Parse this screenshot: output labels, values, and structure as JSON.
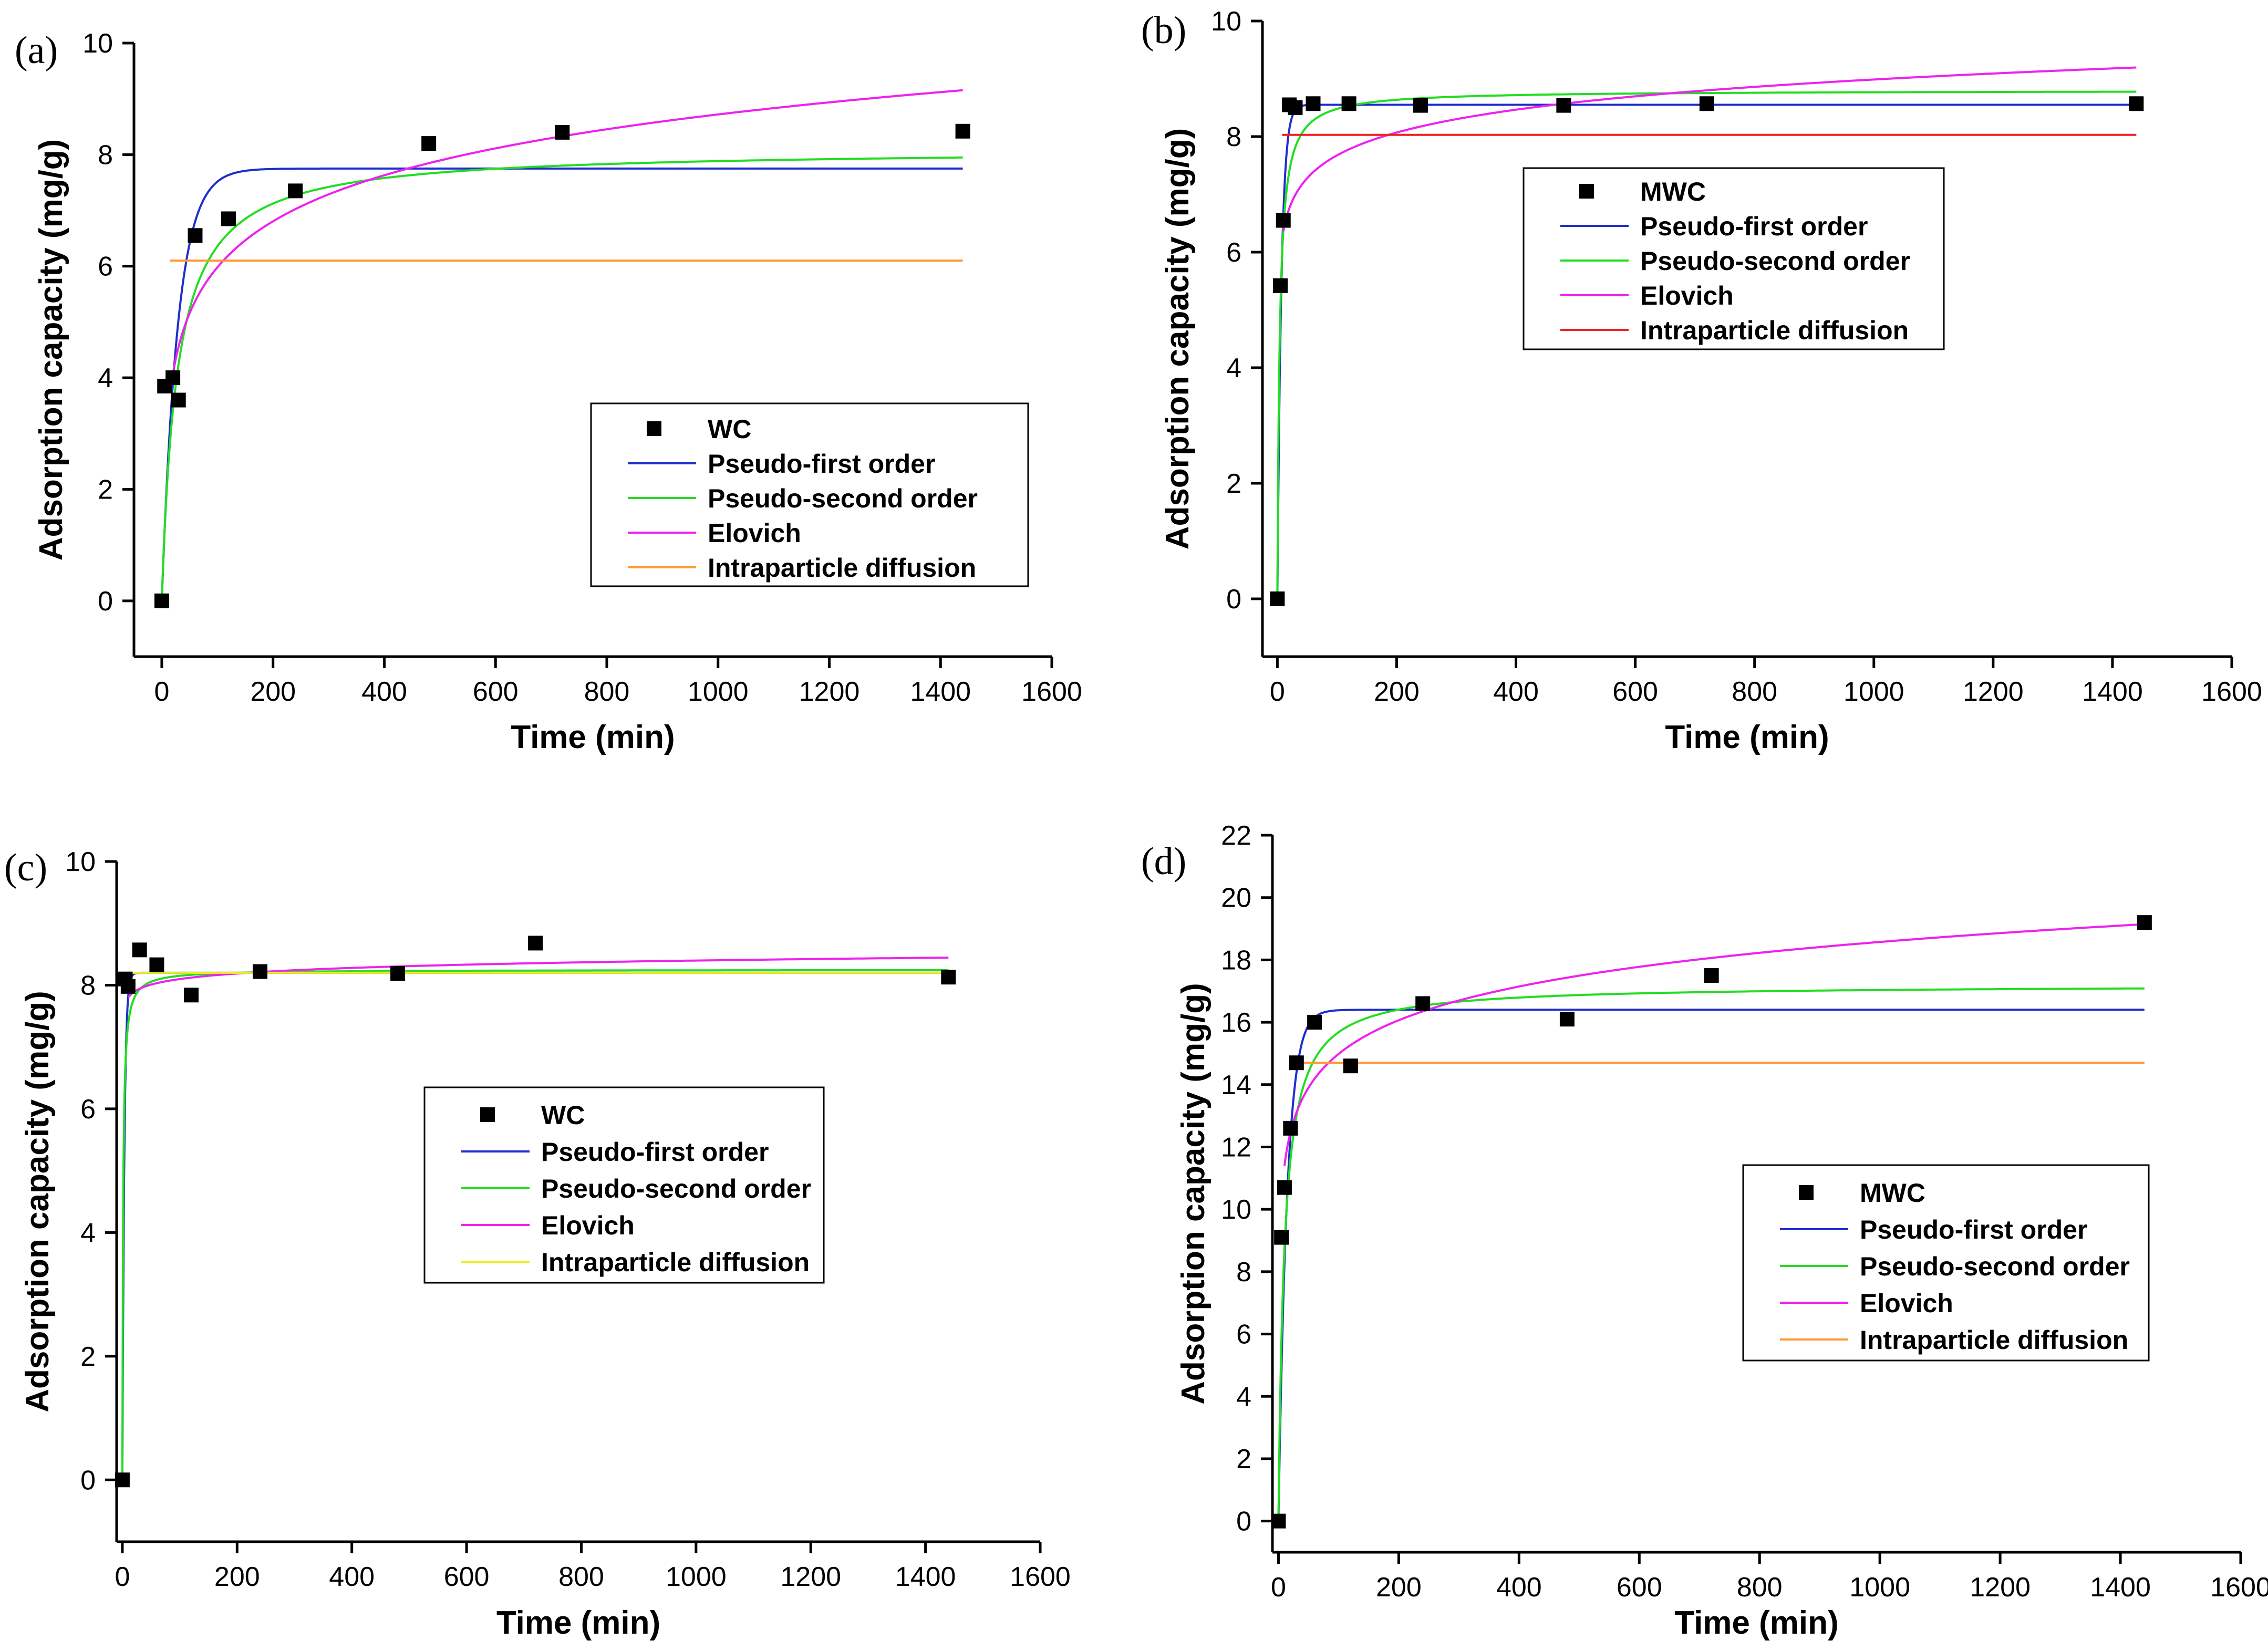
{
  "colors": {
    "pfo": "#1f2ecc",
    "pso": "#22dd22",
    "elovich": "#ee22ee",
    "ipd_orange": "#ff9933",
    "ipd_red": "#ee2222",
    "ipd_yellow": "#eeee22",
    "marker": "#000000"
  },
  "chart_data": [
    {
      "panel": "(a)",
      "type": "scatter",
      "xlabel": "Time (min)",
      "ylabel": "Adsorption capacity (mg/g)",
      "xlim": [
        -50,
        1600
      ],
      "ylim": [
        -1,
        10
      ],
      "xticks": [
        0,
        200,
        400,
        600,
        800,
        1000,
        1200,
        1400,
        1600
      ],
      "yticks": [
        0,
        2,
        4,
        6,
        8,
        10
      ],
      "legend_position": "center-right",
      "scatter": {
        "name": "WC",
        "x": [
          0,
          5,
          20,
          30,
          60,
          120,
          240,
          480,
          720,
          1440
        ],
        "y": [
          0,
          3.85,
          4.0,
          3.6,
          6.55,
          6.85,
          7.35,
          8.2,
          8.4,
          8.42
        ]
      },
      "series": [
        {
          "name": "Pseudo-first order",
          "color_key": "pfo",
          "model": "pfo",
          "params": {
            "qe": 7.75,
            "k": 0.035
          }
        },
        {
          "name": "Pseudo-second order",
          "color_key": "pso",
          "model": "pso",
          "params": {
            "qe": 8.1,
            "k": 0.0045
          }
        },
        {
          "name": "Elovich",
          "color_key": "elovich",
          "model": "elovich",
          "params": {
            "a": 0.5,
            "b": 1.19,
            "t0": 20
          }
        },
        {
          "name": "Intraparticle diffusion",
          "color_key": "ipd_orange",
          "model": "constant",
          "params": {
            "c": 6.1,
            "t0": 15
          }
        }
      ]
    },
    {
      "panel": "(b)",
      "type": "scatter",
      "xlabel": "Time (min)",
      "ylabel": "Adsorption capacity (mg/g)",
      "xlim": [
        -25,
        1600
      ],
      "ylim": [
        -1,
        10
      ],
      "xticks": [
        0,
        200,
        400,
        600,
        800,
        1000,
        1200,
        1400,
        1600
      ],
      "yticks": [
        0,
        2,
        4,
        6,
        8,
        10
      ],
      "legend_position": "upper-center",
      "scatter": {
        "name": "MWC",
        "x": [
          0,
          5,
          10,
          20,
          30,
          60,
          120,
          240,
          480,
          720,
          1440
        ],
        "y": [
          0,
          5.42,
          6.55,
          8.55,
          8.5,
          8.57,
          8.57,
          8.54,
          8.54,
          8.57,
          8.57
        ]
      },
      "series": [
        {
          "name": "Pseudo-first order",
          "color_key": "pfo",
          "model": "pfo",
          "params": {
            "qe": 8.55,
            "k": 0.15
          }
        },
        {
          "name": "Pseudo-second order",
          "color_key": "pso",
          "model": "pso",
          "params": {
            "qe": 8.8,
            "k": 0.03
          }
        },
        {
          "name": "Elovich",
          "color_key": "elovich",
          "model": "elovich",
          "params": {
            "a": 5.05,
            "b": 0.57,
            "t0": 10
          }
        },
        {
          "name": "Intraparticle diffusion",
          "color_key": "ipd_red",
          "model": "constant",
          "params": {
            "c": 8.03,
            "t0": 8
          }
        }
      ]
    },
    {
      "panel": "(c)",
      "type": "scatter",
      "xlabel": "Time (min)",
      "ylabel": "Adsorption capacity (mg/g)",
      "xlim": [
        -10,
        1600
      ],
      "ylim": [
        -1,
        10
      ],
      "xticks": [
        0,
        200,
        400,
        600,
        800,
        1000,
        1200,
        1400,
        1600
      ],
      "yticks": [
        0,
        2,
        4,
        6,
        8,
        10
      ],
      "legend_position": "center",
      "scatter": {
        "name": "WC",
        "x": [
          0,
          5,
          10,
          30,
          60,
          120,
          240,
          480,
          720,
          1440
        ],
        "y": [
          0,
          8.1,
          7.98,
          8.57,
          8.33,
          7.84,
          8.22,
          8.19,
          8.68,
          8.13
        ]
      },
      "series": [
        {
          "name": "Pseudo-first order",
          "color_key": "pfo",
          "model": "pfo",
          "params": {
            "qe": 8.2,
            "k": 0.3
          }
        },
        {
          "name": "Pseudo-second order",
          "color_key": "pso",
          "model": "pso",
          "params": {
            "qe": 8.25,
            "k": 0.1
          }
        },
        {
          "name": "Elovich",
          "color_key": "elovich",
          "model": "elovich",
          "params": {
            "a": 7.5,
            "b": 0.13,
            "t0": 10
          }
        },
        {
          "name": "Intraparticle diffusion",
          "color_key": "ipd_yellow",
          "model": "constant",
          "params": {
            "c": 8.2,
            "t0": 10
          }
        }
      ]
    },
    {
      "panel": "(d)",
      "type": "scatter",
      "xlabel": "Time (min)",
      "ylabel": "Adsorption capacity (mg/g)",
      "xlim": [
        -10,
        1600
      ],
      "ylim": [
        -1,
        22
      ],
      "xticks": [
        0,
        200,
        400,
        600,
        800,
        1000,
        1200,
        1400,
        1600
      ],
      "yticks": [
        0,
        2,
        4,
        6,
        8,
        10,
        12,
        14,
        16,
        18,
        20,
        22
      ],
      "legend_position": "center-right",
      "scatter": {
        "name": "MWC",
        "x": [
          0,
          5,
          10,
          20,
          30,
          60,
          120,
          240,
          480,
          720,
          1440
        ],
        "y": [
          0,
          9.1,
          10.7,
          12.6,
          14.7,
          16.0,
          14.6,
          16.6,
          16.1,
          17.5,
          19.2
        ]
      },
      "series": [
        {
          "name": "Pseudo-first order",
          "color_key": "pfo",
          "model": "pfo",
          "params": {
            "qe": 16.4,
            "k": 0.07
          }
        },
        {
          "name": "Pseudo-second order",
          "color_key": "pso",
          "model": "pso",
          "params": {
            "qe": 17.2,
            "k": 0.006
          }
        },
        {
          "name": "Elovich",
          "color_key": "elovich",
          "model": "elovich",
          "params": {
            "a": 7.8,
            "b": 1.56,
            "t0": 10
          }
        },
        {
          "name": "Intraparticle diffusion",
          "color_key": "ipd_orange",
          "model": "constant",
          "params": {
            "c": 14.7,
            "t0": 25
          }
        }
      ]
    }
  ]
}
